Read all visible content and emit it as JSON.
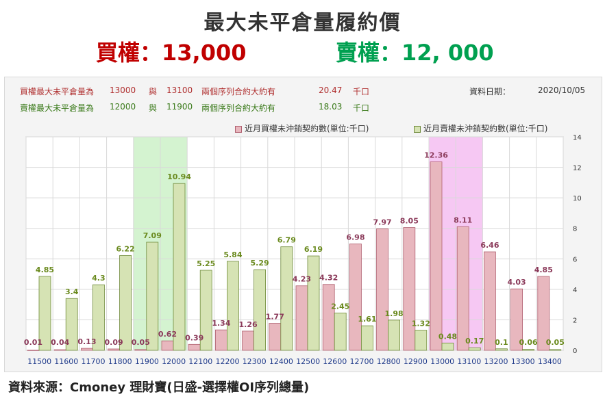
{
  "header": {
    "title": "最大未平倉量履約價",
    "call_text": "買權：13,000",
    "put_text": "賣權：12, 000"
  },
  "info": {
    "call_line": [
      "買權最大未平倉量為",
      "13000",
      "與",
      "13100",
      "兩個序列合約大約有",
      "20.47",
      "千口"
    ],
    "put_line": [
      "賣權最大未平倉量為",
      "12000",
      "與",
      "11900",
      "兩個序列合約大約有",
      "18.03",
      "千口"
    ],
    "date_label": "資料日期：",
    "date_value": "2020/10/05"
  },
  "legend": {
    "call": "近月買權未沖銷契約數(單位:千口)",
    "put": "近月賣權未沖銷契約數(單位:千口)"
  },
  "colors": {
    "call_fill": "#e8b7be",
    "call_stroke": "#b06070",
    "call_label": "#8b3a5a",
    "put_fill": "#d6e3b4",
    "put_stroke": "#6f8a3a",
    "put_label": "#6a8a1e",
    "highlight_put": "#d4f3d0",
    "highlight_call": "#f6c8f3"
  },
  "chart_data": {
    "type": "bar",
    "categories": [
      "11500",
      "11600",
      "11700",
      "11800",
      "11900",
      "12000",
      "12100",
      "12200",
      "12300",
      "12400",
      "12500",
      "12600",
      "12700",
      "12800",
      "12900",
      "13000",
      "13100",
      "13200",
      "13300",
      "13400"
    ],
    "series": [
      {
        "name": "近月買權未沖銷契約數(單位:千口)",
        "values": [
          0.01,
          0.04,
          0.13,
          0.09,
          0.05,
          0.62,
          0.39,
          1.34,
          1.26,
          1.77,
          4.23,
          4.32,
          6.98,
          7.97,
          8.05,
          12.36,
          8.11,
          6.46,
          4.03,
          4.85
        ]
      },
      {
        "name": "近月賣權未沖銷契約數(單位:千口)",
        "values": [
          4.85,
          3.4,
          4.3,
          6.22,
          7.09,
          10.94,
          5.25,
          5.84,
          5.29,
          6.79,
          6.19,
          2.45,
          1.61,
          1.98,
          1.32,
          0.48,
          0.17,
          0.1,
          0.06,
          0.05
        ]
      }
    ],
    "y_ticks": [
      "0",
      "2",
      "4",
      "6",
      "8",
      "10",
      "12",
      "14"
    ],
    "ylim": [
      0,
      14
    ],
    "grid": true,
    "highlight_categories": {
      "put": "11900",
      "call": "13000"
    }
  },
  "source": "資料來源：Cmoney 理財寶(日盛-選擇權OI序列總量)"
}
